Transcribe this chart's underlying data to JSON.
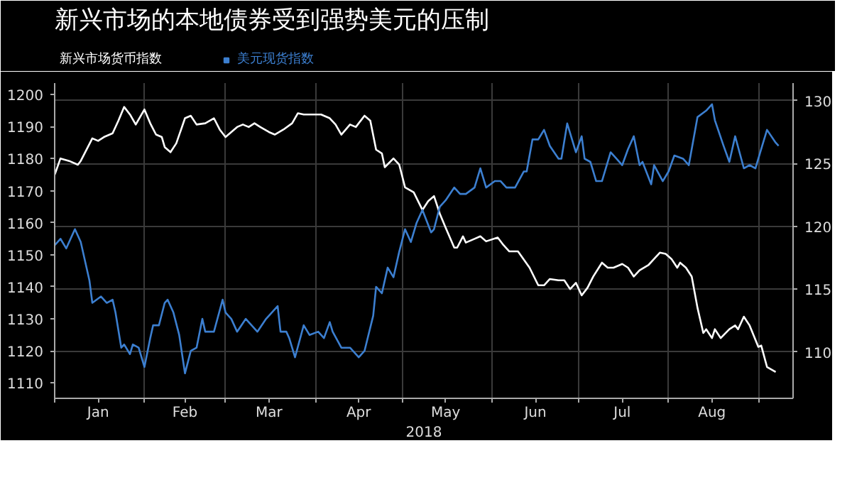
{
  "chart_data": {
    "type": "line",
    "title": "新兴市场的本地债券受到强势美元的压制",
    "xlabel": "2018",
    "xlim": [
      "2018-01-01",
      "2018-09-13"
    ],
    "xticks": [
      {
        "value": "2018-01-01",
        "label": null
      },
      {
        "value": "2018-01-16",
        "label": "Jan"
      },
      {
        "value": "2018-02-01",
        "label": null
      },
      {
        "value": "2018-02-15",
        "label": "Feb"
      },
      {
        "value": "2018-03-01",
        "label": null
      },
      {
        "value": "2018-03-16",
        "label": "Mar"
      },
      {
        "value": "2018-04-01",
        "label": null
      },
      {
        "value": "2018-04-16",
        "label": "Apr"
      },
      {
        "value": "2018-05-01",
        "label": null
      },
      {
        "value": "2018-05-16",
        "label": "May"
      },
      {
        "value": "2018-06-01",
        "label": null
      },
      {
        "value": "2018-06-16",
        "label": "Jun"
      },
      {
        "value": "2018-07-01",
        "label": null
      },
      {
        "value": "2018-07-16",
        "label": "Jul"
      },
      {
        "value": "2018-08-01",
        "label": null
      },
      {
        "value": "2018-08-16",
        "label": "Aug"
      },
      {
        "value": "2018-09-01",
        "label": null
      }
    ],
    "ylim": [
      1105.2,
      1203.6
    ],
    "yticks": [
      1110,
      1120,
      1130,
      1140,
      1150,
      1160,
      1170,
      1180,
      1190,
      1200
    ],
    "y2lim": [
      106.3,
      131.4
    ],
    "y2ticks": [
      110,
      115,
      120,
      125,
      130
    ],
    "grid": true,
    "legend": "top left",
    "series": [
      {
        "name": "新兴市场货币指数",
        "color": "#ffffff",
        "axis": "y2",
        "x": [
          "2018-01-01",
          "2018-01-03",
          "2018-01-06",
          "2018-01-09",
          "2018-01-10",
          "2018-01-14",
          "2018-01-16",
          "2018-01-18",
          "2018-01-21",
          "2018-01-23",
          "2018-01-25",
          "2018-01-27",
          "2018-01-29",
          "2018-02-01",
          "2018-02-03",
          "2018-02-05",
          "2018-02-07",
          "2018-02-08",
          "2018-02-10",
          "2018-02-12",
          "2018-02-15",
          "2018-02-17",
          "2018-02-19",
          "2018-02-22",
          "2018-02-25",
          "2018-02-27",
          "2018-03-01",
          "2018-03-05",
          "2018-03-07",
          "2018-03-09",
          "2018-03-11",
          "2018-03-13",
          "2018-03-16",
          "2018-03-18",
          "2018-03-21",
          "2018-03-24",
          "2018-03-26",
          "2018-03-28",
          "2018-03-31",
          "2018-04-03",
          "2018-04-06",
          "2018-04-08",
          "2018-04-10",
          "2018-04-13",
          "2018-04-15",
          "2018-04-18",
          "2018-04-20",
          "2018-04-22",
          "2018-04-24",
          "2018-04-25",
          "2018-04-28",
          "2018-04-30",
          "2018-05-02",
          "2018-05-05",
          "2018-05-08",
          "2018-05-10",
          "2018-05-12",
          "2018-05-14",
          "2018-05-16",
          "2018-05-19",
          "2018-05-20",
          "2018-05-22",
          "2018-05-23",
          "2018-05-26",
          "2018-05-28",
          "2018-05-30",
          "2018-06-03",
          "2018-06-05",
          "2018-06-07",
          "2018-06-10",
          "2018-06-14",
          "2018-06-17",
          "2018-06-19",
          "2018-06-21",
          "2018-06-24",
          "2018-06-26",
          "2018-06-28",
          "2018-06-30",
          "2018-07-02",
          "2018-07-04",
          "2018-07-06",
          "2018-07-09",
          "2018-07-11",
          "2018-07-13",
          "2018-07-16",
          "2018-07-18",
          "2018-07-20",
          "2018-07-22",
          "2018-07-25",
          "2018-07-27",
          "2018-07-29",
          "2018-07-31",
          "2018-08-02",
          "2018-08-04",
          "2018-08-05",
          "2018-08-07",
          "2018-08-09",
          "2018-08-11",
          "2018-08-13",
          "2018-08-14",
          "2018-08-16",
          "2018-08-17",
          "2018-08-19",
          "2018-08-22",
          "2018-08-24",
          "2018-08-25",
          "2018-08-27",
          "2018-08-29",
          "2018-09-01",
          "2018-09-02",
          "2018-09-04",
          "2018-09-07"
        ],
        "values": [
          124.1,
          125.4,
          125.2,
          124.9,
          125.2,
          127.0,
          126.8,
          127.1,
          127.4,
          128.4,
          129.5,
          128.9,
          128.1,
          129.3,
          128.2,
          127.3,
          127.1,
          126.3,
          125.9,
          126.6,
          128.6,
          128.8,
          128.1,
          128.2,
          128.6,
          127.7,
          127.1,
          127.9,
          128.1,
          127.9,
          128.2,
          127.9,
          127.5,
          127.3,
          127.7,
          128.2,
          129.0,
          128.9,
          128.9,
          128.9,
          128.6,
          128.1,
          127.3,
          128.1,
          127.9,
          128.8,
          128.4,
          126.1,
          125.8,
          124.7,
          125.4,
          124.9,
          123.1,
          122.7,
          121.3,
          122.0,
          122.4,
          121.0,
          119.9,
          118.3,
          118.3,
          119.2,
          118.7,
          119.0,
          119.2,
          118.8,
          119.1,
          118.5,
          118.0,
          118.0,
          116.7,
          115.3,
          115.3,
          115.8,
          115.7,
          115.7,
          115.0,
          115.5,
          114.5,
          115.1,
          116.0,
          117.1,
          116.7,
          116.7,
          117.0,
          116.7,
          116.0,
          116.5,
          116.9,
          117.4,
          117.9,
          117.8,
          117.4,
          116.7,
          117.1,
          116.7,
          116.0,
          113.5,
          111.5,
          111.8,
          111.1,
          111.8,
          111.1,
          111.8,
          112.1,
          111.8,
          112.8,
          112.1,
          110.4,
          110.5,
          108.8,
          108.4
        ]
      },
      {
        "name": "美元现货指数",
        "color": "#3c7fd0",
        "x": [
          "2018-01-01",
          "2018-01-03",
          "2018-01-05",
          "2018-01-08",
          "2018-01-10",
          "2018-01-13",
          "2018-01-14",
          "2018-01-17",
          "2018-01-19",
          "2018-01-21",
          "2018-01-22",
          "2018-01-24",
          "2018-01-25",
          "2018-01-27",
          "2018-01-28",
          "2018-01-30",
          "2018-02-01",
          "2018-02-03",
          "2018-02-04",
          "2018-02-06",
          "2018-02-08",
          "2018-02-09",
          "2018-02-11",
          "2018-02-13",
          "2018-02-15",
          "2018-02-17",
          "2018-02-19",
          "2018-02-21",
          "2018-02-22",
          "2018-02-25",
          "2018-02-28",
          "2018-03-01",
          "2018-03-03",
          "2018-03-05",
          "2018-03-08",
          "2018-03-09",
          "2018-03-12",
          "2018-03-15",
          "2018-03-17",
          "2018-03-19",
          "2018-03-20",
          "2018-03-22",
          "2018-03-23",
          "2018-03-25",
          "2018-03-28",
          "2018-03-30",
          "2018-04-02",
          "2018-04-04",
          "2018-04-06",
          "2018-04-07",
          "2018-04-10",
          "2018-04-13",
          "2018-04-16",
          "2018-04-18",
          "2018-04-21",
          "2018-04-22",
          "2018-04-24",
          "2018-04-26",
          "2018-04-28",
          "2018-04-30",
          "2018-05-02",
          "2018-05-04",
          "2018-05-06",
          "2018-05-08",
          "2018-05-11",
          "2018-05-12",
          "2018-05-14",
          "2018-05-16",
          "2018-05-19",
          "2018-05-21",
          "2018-05-23",
          "2018-05-26",
          "2018-05-28",
          "2018-05-30",
          "2018-06-02",
          "2018-06-04",
          "2018-06-06",
          "2018-06-09",
          "2018-06-12",
          "2018-06-13",
          "2018-06-15",
          "2018-06-17",
          "2018-06-19",
          "2018-06-21",
          "2018-06-24",
          "2018-06-25",
          "2018-06-27",
          "2018-06-30",
          "2018-07-02",
          "2018-07-03",
          "2018-07-05",
          "2018-07-07",
          "2018-07-09",
          "2018-07-12",
          "2018-07-14",
          "2018-07-16",
          "2018-07-18",
          "2018-07-20",
          "2018-07-22",
          "2018-07-23",
          "2018-07-26",
          "2018-07-27",
          "2018-07-30",
          "2018-08-01",
          "2018-08-03",
          "2018-08-06",
          "2018-08-08",
          "2018-08-11",
          "2018-08-14",
          "2018-08-16",
          "2018-08-17",
          "2018-08-20",
          "2018-08-22",
          "2018-08-24",
          "2018-08-27",
          "2018-08-29",
          "2018-08-31",
          "2018-09-02",
          "2018-09-04",
          "2018-09-07",
          "2018-09-08"
        ],
        "values": [
          1153,
          1155,
          1152,
          1158,
          1154,
          1142,
          1135,
          1137,
          1135,
          1136,
          1132,
          1121,
          1122,
          1119,
          1122,
          1121,
          1115,
          1124,
          1128,
          1128,
          1135,
          1136,
          1132,
          1125,
          1113,
          1120,
          1121,
          1130,
          1126,
          1126,
          1136,
          1132,
          1130,
          1126,
          1130,
          1129,
          1126,
          1130,
          1132,
          1134,
          1126,
          1126,
          1124,
          1118,
          1128,
          1125,
          1126,
          1124,
          1129,
          1126,
          1121,
          1121,
          1118,
          1120,
          1131,
          1140,
          1138,
          1146,
          1143,
          1151,
          1158,
          1154,
          1160,
          1164,
          1157,
          1158,
          1165,
          1167,
          1171,
          1169,
          1169,
          1171,
          1177,
          1171,
          1173,
          1173,
          1171,
          1171,
          1176,
          1176,
          1186,
          1186,
          1189,
          1184,
          1180,
          1180,
          1191,
          1182,
          1187,
          1180,
          1179,
          1173,
          1173,
          1182,
          1180,
          1178,
          1183,
          1187,
          1178,
          1179,
          1172,
          1178,
          1173,
          1176,
          1181,
          1180,
          1178,
          1193,
          1195,
          1197,
          1192,
          1184,
          1179,
          1187,
          1177,
          1178,
          1177,
          1183,
          1189,
          1185,
          1184
        ]
      }
    ]
  }
}
